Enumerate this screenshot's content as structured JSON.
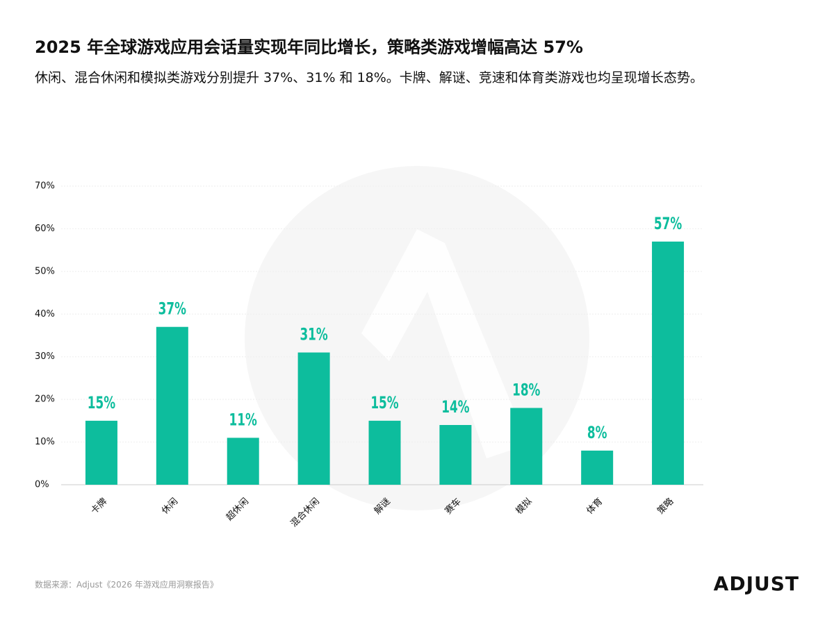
{
  "chart_data": {
    "type": "bar",
    "title": "2025 年全球游戏应用会话量实现年同比增长，策略类游戏增幅高达 57%",
    "subtitle": "休闲、混合休闲和模拟类游戏分别提升 37%、31% 和 18%。卡牌、解谜、竞速和体育类游戏也均呈现增长态势。",
    "categories": [
      "卡牌",
      "休闲",
      "超休闲",
      "混合休闲",
      "解谜",
      "赛车",
      "模拟",
      "体育",
      "策略"
    ],
    "values": [
      15,
      37,
      11,
      31,
      15,
      14,
      18,
      8,
      57
    ],
    "value_labels": [
      "15%",
      "37%",
      "11%",
      "31%",
      "15%",
      "14%",
      "18%",
      "8%",
      "57%"
    ],
    "color": "#0dbd9d",
    "ylim": [
      0,
      70
    ],
    "yticks": [
      {
        "value": 0,
        "label": "0%"
      },
      {
        "value": 10,
        "label": "10%"
      },
      {
        "value": 20,
        "label": "20%"
      },
      {
        "value": 30,
        "label": "30%"
      },
      {
        "value": 40,
        "label": "40%"
      },
      {
        "value": 50,
        "label": "50%"
      },
      {
        "value": 60,
        "label": "60%"
      },
      {
        "value": 70,
        "label": "70%"
      }
    ],
    "grid": true,
    "source": "数据来源：Adjust《2026 年游戏应用洞察报告》",
    "logo": "ADJUST"
  }
}
